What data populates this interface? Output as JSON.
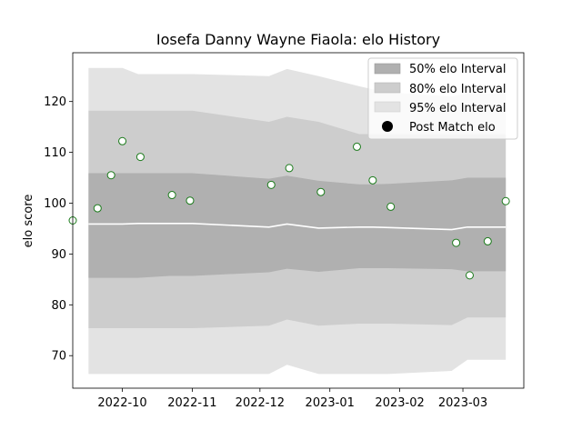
{
  "chart_data": {
    "type": "line",
    "title": "Iosefa Danny Wayne Fiaola: elo History",
    "xlabel": "",
    "ylabel": "elo score",
    "xlim": [
      "2022-09-09",
      "2023-03-28"
    ],
    "ylim": [
      63.6,
      129.6
    ],
    "x_ticks": [
      "2022-10",
      "2022-11",
      "2022-12",
      "2023-01",
      "2023-02",
      "2023-03"
    ],
    "y_ticks": [
      70,
      80,
      90,
      100,
      110,
      120
    ],
    "grid": false,
    "legend_position": "upper-right",
    "legend": {
      "band50": "50% elo Interval",
      "band80": "80% elo Interval",
      "band95": "95% elo Interval",
      "points": "Post Match elo"
    },
    "colors": {
      "band50": "#b0b0b0",
      "band80": "#cdcdcd",
      "band95": "#e3e3e3",
      "median": "#ffffff",
      "marker_edge": "#1a7a1a",
      "marker_face": "#ffffff"
    },
    "bands": {
      "x": [
        "2022-09-16",
        "2022-10-01",
        "2022-10-08",
        "2022-10-22",
        "2022-11-01",
        "2022-12-05",
        "2022-12-13",
        "2022-12-27",
        "2023-01-14",
        "2023-01-20",
        "2023-01-27",
        "2023-02-24",
        "2023-03-03",
        "2023-03-10",
        "2023-03-20"
      ],
      "p95_upper": [
        126.6,
        126.6,
        125.4,
        125.4,
        125.4,
        125.0,
        126.4,
        125.0,
        123.0,
        122.4,
        121.8,
        121.0,
        121.6,
        121.6,
        121.6
      ],
      "p95_lower": [
        66.4,
        66.4,
        66.4,
        66.4,
        66.4,
        66.4,
        68.2,
        66.4,
        66.4,
        66.4,
        66.4,
        67.0,
        69.2,
        69.2,
        69.2
      ],
      "p80_upper": [
        118.2,
        118.2,
        118.2,
        118.2,
        118.2,
        116.0,
        117.0,
        116.0,
        113.6,
        113.6,
        113.6,
        113.6,
        113.6,
        113.6,
        113.6
      ],
      "p80_lower": [
        75.4,
        75.4,
        75.4,
        75.4,
        75.4,
        75.9,
        77.1,
        75.9,
        76.3,
        76.3,
        76.3,
        76.0,
        77.5,
        77.5,
        77.5
      ],
      "p50_upper": [
        105.9,
        105.9,
        105.9,
        105.9,
        105.9,
        104.8,
        105.4,
        104.4,
        103.7,
        103.7,
        103.8,
        104.5,
        105.0,
        105.0,
        105.0
      ],
      "p50_lower": [
        85.3,
        85.3,
        85.3,
        85.7,
        85.7,
        86.4,
        87.1,
        86.5,
        87.2,
        87.2,
        87.2,
        87.0,
        86.6,
        86.6,
        86.6
      ]
    },
    "median_line": {
      "x": [
        "2022-09-16",
        "2022-10-01",
        "2022-10-08",
        "2022-10-22",
        "2022-11-01",
        "2022-12-05",
        "2022-12-13",
        "2022-12-27",
        "2023-01-14",
        "2023-01-20",
        "2023-01-27",
        "2023-02-24",
        "2023-03-03",
        "2023-03-10",
        "2023-03-20"
      ],
      "y": [
        95.9,
        95.9,
        96.0,
        96.0,
        96.0,
        95.3,
        95.9,
        95.1,
        95.3,
        95.3,
        95.2,
        94.8,
        95.3,
        95.3,
        95.3
      ]
    },
    "series": [
      {
        "name": "Post Match elo",
        "x": [
          "2022-09-09",
          "2022-09-20",
          "2022-09-26",
          "2022-10-01",
          "2022-10-09",
          "2022-10-23",
          "2022-10-31",
          "2022-12-06",
          "2022-12-14",
          "2022-12-28",
          "2023-01-13",
          "2023-01-20",
          "2023-01-28",
          "2023-02-26",
          "2023-03-04",
          "2023-03-12",
          "2023-03-20"
        ],
        "y": [
          96.6,
          99.0,
          105.5,
          112.2,
          109.1,
          101.6,
          100.5,
          103.6,
          106.9,
          102.2,
          111.1,
          104.5,
          99.3,
          92.2,
          85.8,
          92.5,
          100.4
        ]
      }
    ]
  }
}
